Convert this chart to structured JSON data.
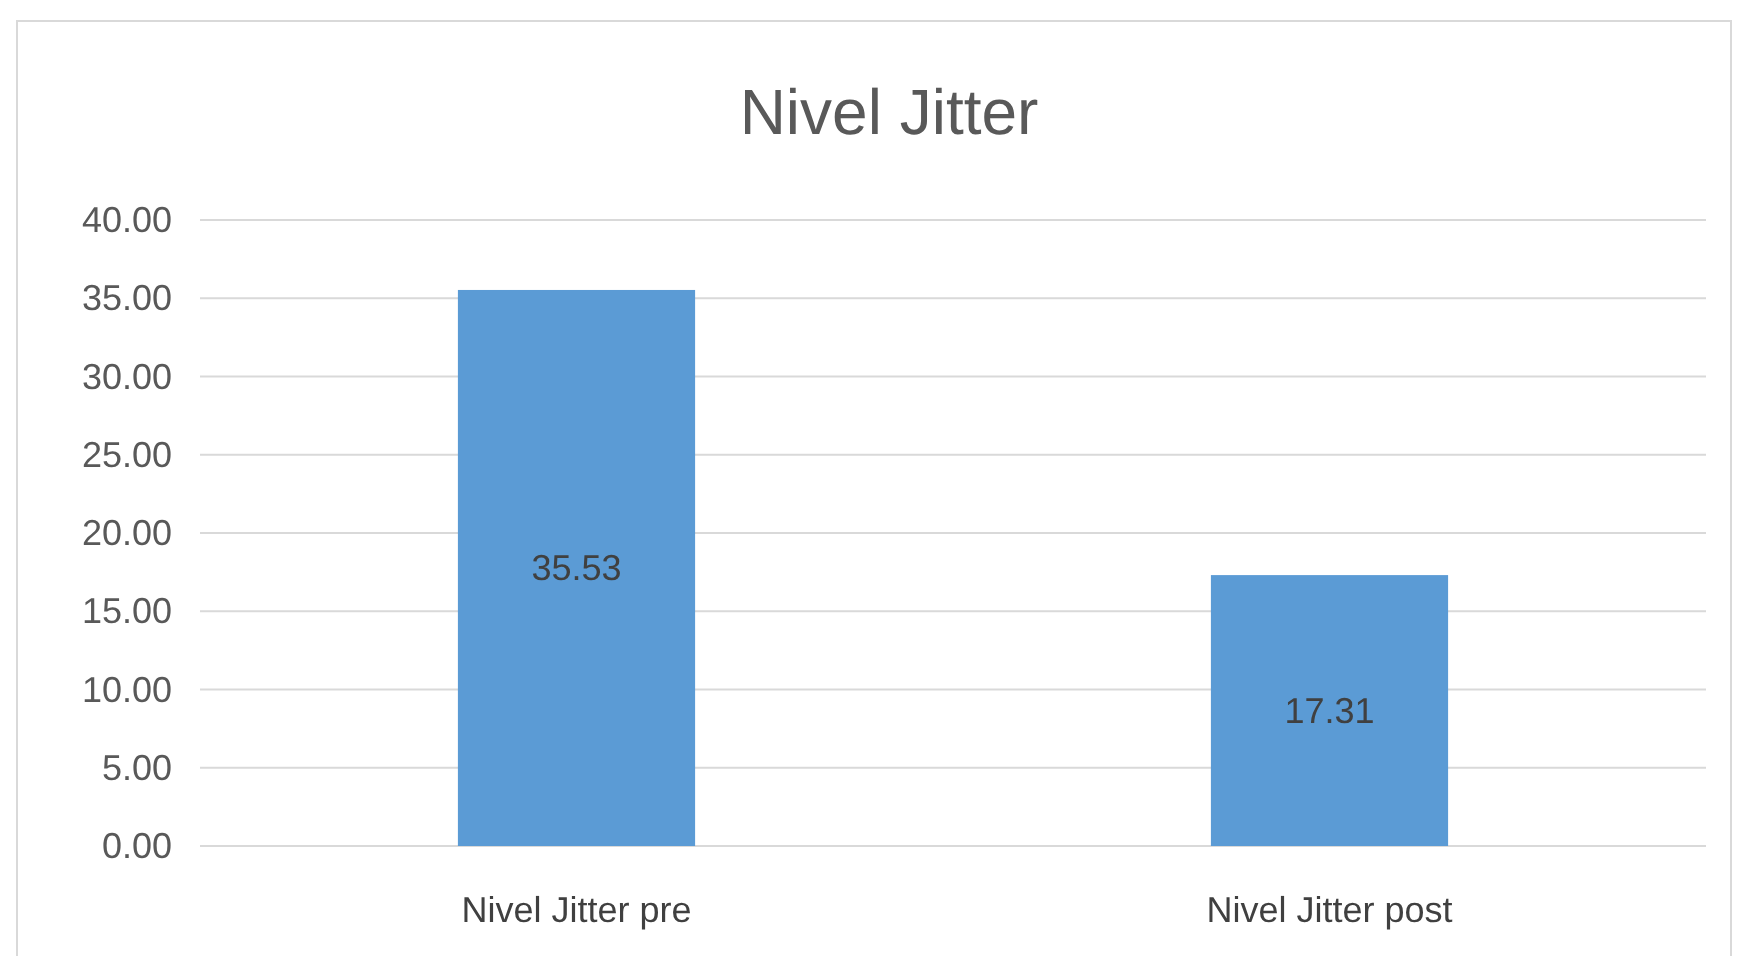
{
  "chart_data": {
    "type": "bar",
    "title": "Nivel Jitter",
    "categories": [
      "Nivel Jitter pre",
      "Nivel Jitter post"
    ],
    "values": [
      35.53,
      17.31
    ],
    "color": "#5b9bd5",
    "ylim": [
      0,
      40
    ],
    "yticks": [
      {
        "value": 0,
        "label": "0.00"
      },
      {
        "value": 5,
        "label": "5.00"
      },
      {
        "value": 10,
        "label": "10.00"
      },
      {
        "value": 15,
        "label": "15.00"
      },
      {
        "value": 20,
        "label": "20.00"
      },
      {
        "value": 25,
        "label": "25.00"
      },
      {
        "value": 30,
        "label": "30.00"
      },
      {
        "value": 35,
        "label": "35.00"
      },
      {
        "value": 40,
        "label": "40.00"
      }
    ],
    "grid": "y",
    "data_labels": true
  }
}
